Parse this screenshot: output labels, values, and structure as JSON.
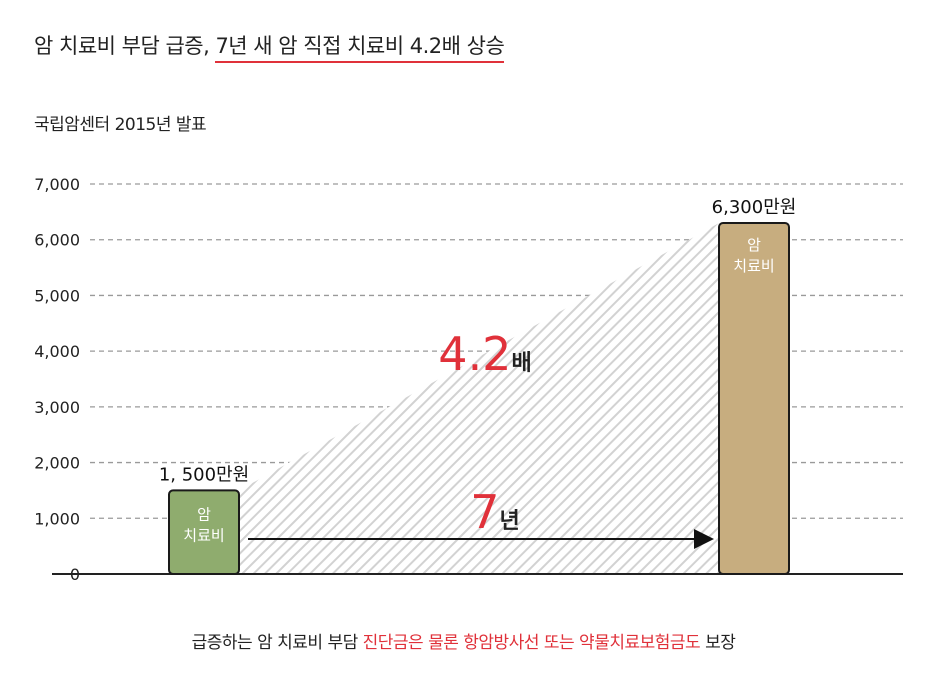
{
  "header": {
    "title_plain": "암 치료비 부담 급증, ",
    "title_highlight": "7년 새 암 직접 치료비 4.2배 상승",
    "source": "국립암센터 2015년 발표"
  },
  "footer": {
    "part1": "급증하는 암 치료비 부담 ",
    "part2": "진단금은 물론 항암방사선 또는 약물치료보험금도",
    "part3": " 보장"
  },
  "colors": {
    "accent_red": "#e0313a",
    "bar_small": "#8fac6e",
    "bar_large": "#c7ad7f",
    "hatch": "#d2d2d2"
  },
  "chart_data": {
    "type": "bar",
    "categories": [
      "암 치료비",
      "암 치료비"
    ],
    "values": [
      1500,
      6300
    ],
    "value_labels": [
      "1, 500만원",
      "6,300만원"
    ],
    "bar_text": [
      "암",
      "치료비"
    ],
    "yticks": [
      0,
      1000,
      2000,
      3000,
      4000,
      5000,
      6000,
      7000
    ],
    "ytick_labels": [
      "0",
      "1,000",
      "2,000",
      "3,000",
      "4,000",
      "5,000",
      "6,000",
      "7,000"
    ],
    "ylim": [
      0,
      7000
    ],
    "grid": "dashed",
    "annotations": {
      "ratio_number": "4.2",
      "ratio_unit": "배",
      "period_number": "7",
      "period_unit": "년"
    }
  }
}
